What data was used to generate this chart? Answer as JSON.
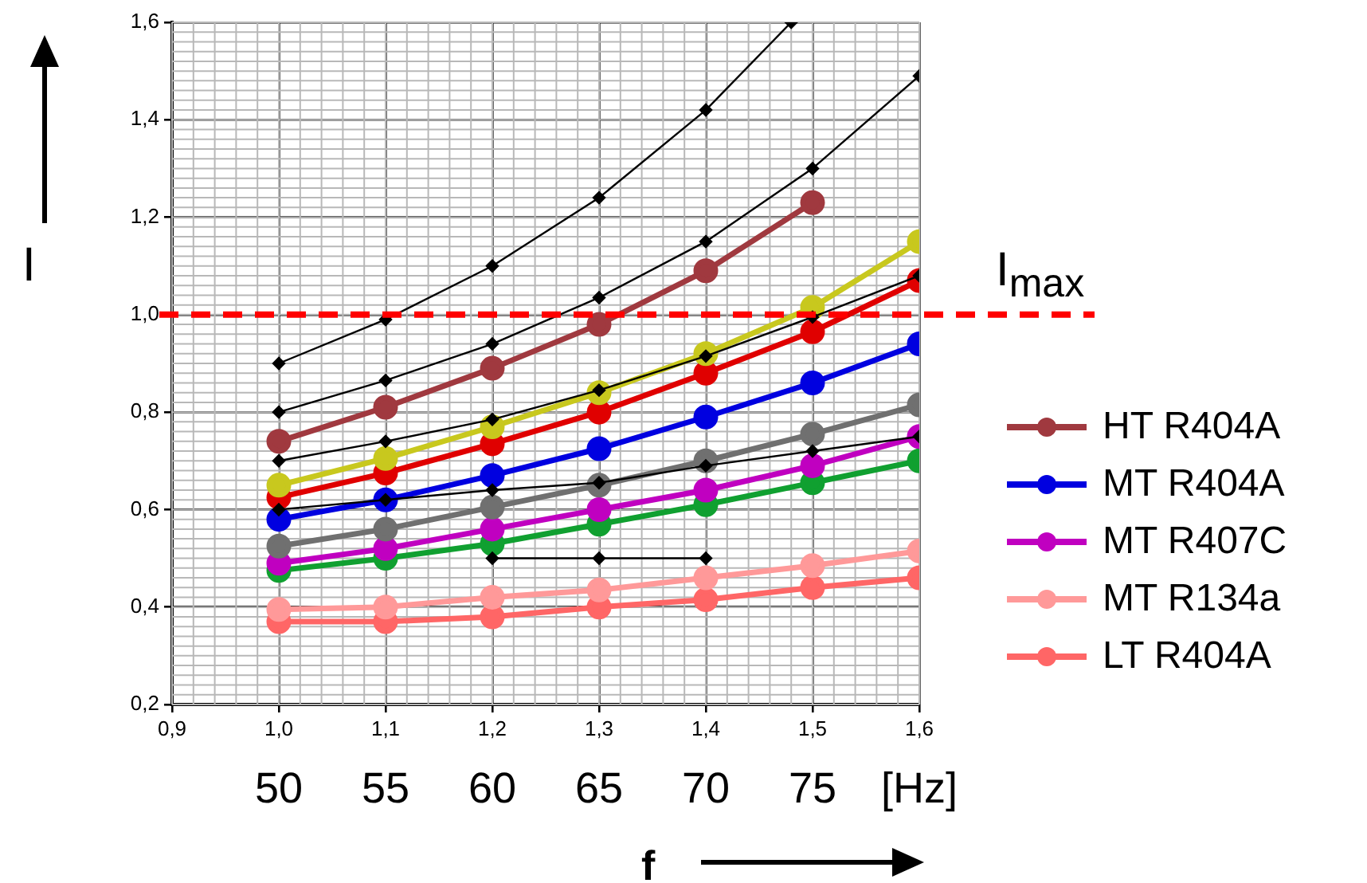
{
  "chart_data": {
    "type": "line",
    "xlabel": "f",
    "ylabel": "I",
    "x": [
      1.0,
      1.1,
      1.2,
      1.3,
      1.4,
      1.5,
      1.6
    ],
    "xlim": [
      0.9,
      1.6
    ],
    "xticks": [
      {
        "value": 0.9,
        "label": "0,9"
      },
      {
        "value": 1.0,
        "label": "1,0"
      },
      {
        "value": 1.1,
        "label": "1,1"
      },
      {
        "value": 1.2,
        "label": "1,2"
      },
      {
        "value": 1.3,
        "label": "1,3"
      },
      {
        "value": 1.4,
        "label": "1,4"
      },
      {
        "value": 1.5,
        "label": "1,5"
      },
      {
        "value": 1.6,
        "label": "1,6"
      }
    ],
    "ylim": [
      0.2,
      1.6
    ],
    "yticks": [
      {
        "value": 0.2,
        "label": "0,2"
      },
      {
        "value": 0.4,
        "label": "0,4"
      },
      {
        "value": 0.6,
        "label": "0,6"
      },
      {
        "value": 0.8,
        "label": "0,8"
      },
      {
        "value": 1.0,
        "label": "1,0"
      },
      {
        "value": 1.2,
        "label": "1,2"
      },
      {
        "value": 1.4,
        "label": "1,4"
      },
      {
        "value": 1.6,
        "label": "1,6"
      }
    ],
    "x2lim": [
      45,
      80
    ],
    "x2ticks": [
      50,
      55,
      60,
      65,
      70,
      75,
      {
        "value": 80,
        "label": "[Hz]"
      }
    ],
    "grid": true,
    "legend": "right",
    "ref_lines": [
      {
        "axis": "y",
        "value": 1.0,
        "label": "I$_{max}$",
        "color": "#ff0000",
        "line_style": "dashed"
      }
    ],
    "series": [
      {
        "color": "#000000",
        "marker": "diamond",
        "x": [
          1.0,
          1.1,
          1.2,
          1.3,
          1.4,
          1.48
        ],
        "values": [
          0.9,
          0.99,
          1.1,
          1.24,
          1.42,
          1.6
        ]
      },
      {
        "color": "#000000",
        "marker": "diamond",
        "values": [
          0.8,
          0.865,
          0.94,
          1.035,
          1.15,
          1.3,
          1.49
        ]
      },
      {
        "color": "#000000",
        "marker": "diamond",
        "values": [
          0.7,
          0.74,
          0.785,
          0.845,
          0.915,
          0.995,
          1.08
        ]
      },
      {
        "color": "#000000",
        "marker": "diamond",
        "values": [
          0.6,
          0.62,
          0.64,
          0.655,
          0.69,
          0.72,
          0.75
        ]
      },
      {
        "color": "#000000",
        "marker": "diamond",
        "x": [
          1.2,
          1.3,
          1.4
        ],
        "values": [
          0.5,
          0.5,
          0.5
        ]
      },
      {
        "name": "HT R404A",
        "color": "#a0393f",
        "marker": "circle",
        "values": [
          0.74,
          0.81,
          0.89,
          0.98,
          1.09,
          1.23,
          null
        ]
      },
      {
        "color": "#c8c81e",
        "marker": "circle",
        "values": [
          0.65,
          0.705,
          0.77,
          0.84,
          0.92,
          1.015,
          1.15
        ]
      },
      {
        "color": "#e00000",
        "marker": "circle",
        "values": [
          0.625,
          0.675,
          0.735,
          0.8,
          0.88,
          0.965,
          1.07
        ]
      },
      {
        "name": "MT R404A",
        "color": "#0000e0",
        "marker": "circle",
        "values": [
          0.58,
          0.62,
          0.67,
          0.725,
          0.79,
          0.86,
          0.94
        ]
      },
      {
        "color": "#707070",
        "marker": "circle",
        "values": [
          0.525,
          0.56,
          0.605,
          0.65,
          0.7,
          0.755,
          0.815
        ]
      },
      {
        "name": "MT R407C",
        "color": "#c000c0",
        "marker": "circle",
        "values": [
          0.49,
          0.52,
          0.56,
          0.6,
          0.64,
          0.69,
          0.75
        ]
      },
      {
        "color": "#10a030",
        "marker": "circle",
        "values": [
          0.475,
          0.5,
          0.53,
          0.57,
          0.61,
          0.655,
          0.7
        ]
      },
      {
        "name": "MT R134a",
        "color": "#ff9999",
        "marker": "circle",
        "values": [
          0.395,
          0.4,
          0.42,
          0.435,
          0.46,
          0.485,
          0.515
        ]
      },
      {
        "name": "LT R404A",
        "color": "#ff6666",
        "marker": "circle",
        "values": [
          0.37,
          0.37,
          0.38,
          0.4,
          0.415,
          0.44,
          0.46
        ]
      }
    ]
  }
}
